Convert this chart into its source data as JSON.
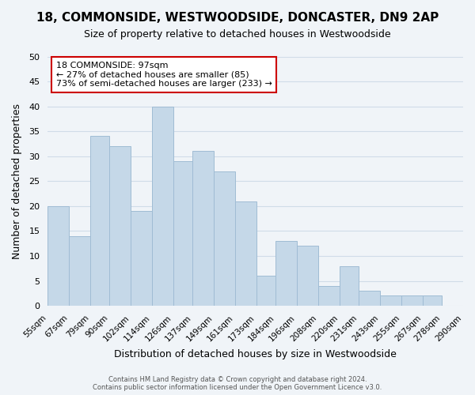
{
  "title": "18, COMMONSIDE, WESTWOODSIDE, DONCASTER, DN9 2AP",
  "subtitle": "Size of property relative to detached houses in Westwoodside",
  "xlabel": "Distribution of detached houses by size in Westwoodside",
  "ylabel": "Number of detached properties",
  "footer_lines": [
    "Contains HM Land Registry data © Crown copyright and database right 2024.",
    "Contains public sector information licensed under the Open Government Licence v3.0."
  ],
  "bin_labels": [
    "55sqm",
    "67sqm",
    "79sqm",
    "90sqm",
    "102sqm",
    "114sqm",
    "126sqm",
    "137sqm",
    "149sqm",
    "161sqm",
    "173sqm",
    "184sqm",
    "196sqm",
    "208sqm",
    "220sqm",
    "231sqm",
    "243sqm",
    "255sqm",
    "267sqm",
    "278sqm",
    "290sqm"
  ],
  "bar_values": [
    20,
    14,
    34,
    32,
    19,
    40,
    29,
    31,
    27,
    21,
    6,
    13,
    12,
    4,
    8,
    3,
    2,
    2,
    2,
    0
  ],
  "bar_color": "#c5d8e8",
  "bar_edge_color": "#a0bcd4",
  "ylim": [
    0,
    50
  ],
  "yticks": [
    0,
    5,
    10,
    15,
    20,
    25,
    30,
    35,
    40,
    45,
    50
  ],
  "annotation_box_text": "18 COMMONSIDE: 97sqm",
  "annotation_line1": "← 27% of detached houses are smaller (85)",
  "annotation_line2": "73% of semi-detached houses are larger (233) →",
  "annotation_box_color": "#ffffff",
  "annotation_box_edge_color": "#cc0000",
  "property_size_sqm": 97,
  "bin_edges": [
    55,
    67,
    79,
    90,
    102,
    114,
    126,
    137,
    149,
    161,
    173,
    184,
    196,
    208,
    220,
    231,
    243,
    255,
    267,
    278,
    290
  ],
  "grid_color": "#d0dce8",
  "background_color": "#f0f4f8"
}
